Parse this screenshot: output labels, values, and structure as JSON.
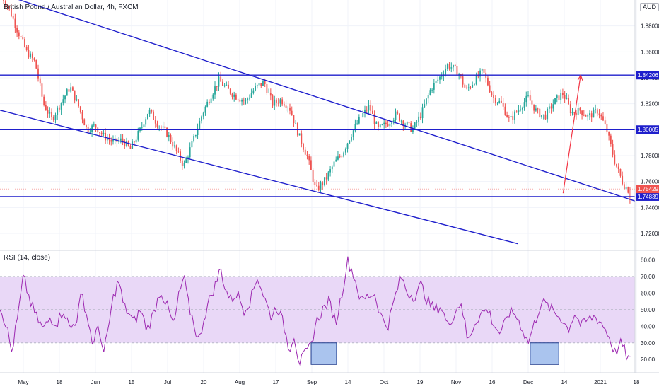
{
  "header": {
    "symbol_title": "British Pound / Australian Dollar, 4h, FXCM",
    "currency": "AUD"
  },
  "rsi": {
    "title": "RSI (14, close)"
  },
  "colors": {
    "bull": "#26a69a",
    "bear": "#ef5350",
    "trendline": "#1f1fcc",
    "arrow": "#f23645",
    "rsi_line": "#9c27b0",
    "rsi_band": "#e9d8f7",
    "highlight_box": "#aac4ee"
  },
  "chart_data": [
    {
      "type": "candlestick",
      "x_ticks": [
        "May",
        "18",
        "Jun",
        "15",
        "Jul",
        "20",
        "Aug",
        "17",
        "Sep",
        "14",
        "Oct",
        "19",
        "Nov",
        "16",
        "Dec",
        "14",
        "2021",
        "18"
      ],
      "y_ticks": [
        "1.88000",
        "1.86000",
        "1.84000",
        "1.82000",
        "1.80000",
        "1.78000",
        "1.76000",
        "1.74000",
        "1.72000"
      ],
      "ylim": [
        1.708,
        1.9
      ],
      "close_path": [
        [
          0,
          1.905
        ],
        [
          5,
          1.895
        ],
        [
          10,
          1.878
        ],
        [
          16,
          1.86
        ],
        [
          21,
          1.852
        ],
        [
          26,
          1.82
        ],
        [
          31,
          1.808
        ],
        [
          37,
          1.822
        ],
        [
          42,
          1.833
        ],
        [
          47,
          1.818
        ],
        [
          52,
          1.8
        ],
        [
          57,
          1.803
        ],
        [
          62,
          1.795
        ],
        [
          68,
          1.79
        ],
        [
          73,
          1.792
        ],
        [
          78,
          1.785
        ],
        [
          84,
          1.8
        ],
        [
          89,
          1.815
        ],
        [
          94,
          1.805
        ],
        [
          100,
          1.797
        ],
        [
          105,
          1.785
        ],
        [
          110,
          1.772
        ],
        [
          116,
          1.793
        ],
        [
          121,
          1.812
        ],
        [
          126,
          1.826
        ],
        [
          131,
          1.838
        ],
        [
          137,
          1.83
        ],
        [
          142,
          1.825
        ],
        [
          147,
          1.822
        ],
        [
          152,
          1.831
        ],
        [
          158,
          1.837
        ],
        [
          163,
          1.82
        ],
        [
          168,
          1.823
        ],
        [
          173,
          1.818
        ],
        [
          179,
          1.795
        ],
        [
          184,
          1.779
        ],
        [
          189,
          1.753
        ],
        [
          195,
          1.762
        ],
        [
          200,
          1.774
        ],
        [
          205,
          1.782
        ],
        [
          210,
          1.796
        ],
        [
          216,
          1.81
        ],
        [
          221,
          1.818
        ],
        [
          226,
          1.8
        ],
        [
          232,
          1.805
        ],
        [
          237,
          1.812
        ],
        [
          242,
          1.805
        ],
        [
          247,
          1.8
        ],
        [
          252,
          1.812
        ],
        [
          258,
          1.832
        ],
        [
          263,
          1.84
        ],
        [
          268,
          1.85
        ],
        [
          274,
          1.845
        ],
        [
          279,
          1.83
        ],
        [
          284,
          1.838
        ],
        [
          289,
          1.845
        ],
        [
          295,
          1.825
        ],
        [
          300,
          1.82
        ],
        [
          305,
          1.807
        ],
        [
          311,
          1.817
        ],
        [
          316,
          1.825
        ],
        [
          321,
          1.814
        ],
        [
          326,
          1.81
        ],
        [
          332,
          1.822
        ],
        [
          337,
          1.828
        ],
        [
          342,
          1.813
        ],
        [
          347,
          1.815
        ],
        [
          352,
          1.81
        ],
        [
          358,
          1.815
        ],
        [
          363,
          1.8
        ],
        [
          368,
          1.775
        ],
        [
          373,
          1.758
        ],
        [
          377,
          1.752
        ]
      ],
      "horizontal_levels": [
        {
          "label": "1.84206",
          "value": 1.84206
        },
        {
          "label": "1.80005",
          "value": 1.80005
        },
        {
          "label": "1.74839",
          "value": 1.74839
        }
      ],
      "last_price": {
        "label": "1.75429",
        "value": 1.75429
      }
    },
    {
      "type": "line",
      "y_ticks": [
        "80.00",
        "70.00",
        "60.00",
        "50.00",
        "40.00",
        "30.00",
        "20.00"
      ],
      "ylim": [
        12,
        84
      ],
      "overbought": 70,
      "oversold": 30,
      "path": [
        [
          0,
          52
        ],
        [
          4,
          40
        ],
        [
          7,
          24
        ],
        [
          11,
          48
        ],
        [
          14,
          70
        ],
        [
          18,
          55
        ],
        [
          22,
          45
        ],
        [
          26,
          38
        ],
        [
          30,
          45
        ],
        [
          34,
          42
        ],
        [
          38,
          50
        ],
        [
          42,
          38
        ],
        [
          46,
          45
        ],
        [
          49,
          60
        ],
        [
          52,
          46
        ],
        [
          56,
          28
        ],
        [
          59,
          42
        ],
        [
          62,
          22
        ],
        [
          65,
          40
        ],
        [
          68,
          58
        ],
        [
          71,
          68
        ],
        [
          74,
          52
        ],
        [
          77,
          48
        ],
        [
          80,
          42
        ],
        [
          84,
          50
        ],
        [
          88,
          38
        ],
        [
          92,
          48
        ],
        [
          96,
          62
        ],
        [
          100,
          52
        ],
        [
          104,
          40
        ],
        [
          107,
          58
        ],
        [
          110,
          70
        ],
        [
          113,
          52
        ],
        [
          116,
          42
        ],
        [
          119,
          30
        ],
        [
          122,
          45
        ],
        [
          126,
          58
        ],
        [
          129,
          65
        ],
        [
          132,
          75
        ],
        [
          135,
          62
        ],
        [
          138,
          56
        ],
        [
          142,
          60
        ],
        [
          146,
          50
        ],
        [
          150,
          56
        ],
        [
          154,
          70
        ],
        [
          158,
          58
        ],
        [
          162,
          46
        ],
        [
          166,
          52
        ],
        [
          170,
          40
        ],
        [
          173,
          26
        ],
        [
          176,
          35
        ],
        [
          179,
          18
        ],
        [
          182,
          22
        ],
        [
          186,
          28
        ],
        [
          189,
          42
        ],
        [
          193,
          50
        ],
        [
          197,
          55
        ],
        [
          201,
          42
        ],
        [
          205,
          62
        ],
        [
          208,
          80
        ],
        [
          212,
          70
        ],
        [
          216,
          55
        ],
        [
          220,
          58
        ],
        [
          224,
          60
        ],
        [
          228,
          46
        ],
        [
          232,
          40
        ],
        [
          236,
          56
        ],
        [
          240,
          70
        ],
        [
          244,
          60
        ],
        [
          248,
          58
        ],
        [
          252,
          65
        ],
        [
          256,
          55
        ],
        [
          260,
          50
        ],
        [
          264,
          52
        ],
        [
          268,
          40
        ],
        [
          272,
          48
        ],
        [
          276,
          55
        ],
        [
          280,
          30
        ],
        [
          284,
          42
        ],
        [
          288,
          48
        ],
        [
          292,
          50
        ],
        [
          296,
          40
        ],
        [
          300,
          35
        ],
        [
          304,
          48
        ],
        [
          308,
          48
        ],
        [
          312,
          40
        ],
        [
          316,
          30
        ],
        [
          320,
          42
        ],
        [
          324,
          55
        ],
        [
          328,
          52
        ],
        [
          332,
          48
        ],
        [
          336,
          45
        ],
        [
          340,
          38
        ],
        [
          344,
          48
        ],
        [
          348,
          40
        ],
        [
          352,
          44
        ],
        [
          356,
          46
        ],
        [
          360,
          42
        ],
        [
          364,
          35
        ],
        [
          368,
          24
        ],
        [
          372,
          30
        ],
        [
          375,
          22
        ],
        [
          378,
          19
        ]
      ],
      "highlight_boxes": [
        [
          0.49,
          0.53
        ],
        [
          0.835,
          0.88
        ]
      ]
    }
  ]
}
